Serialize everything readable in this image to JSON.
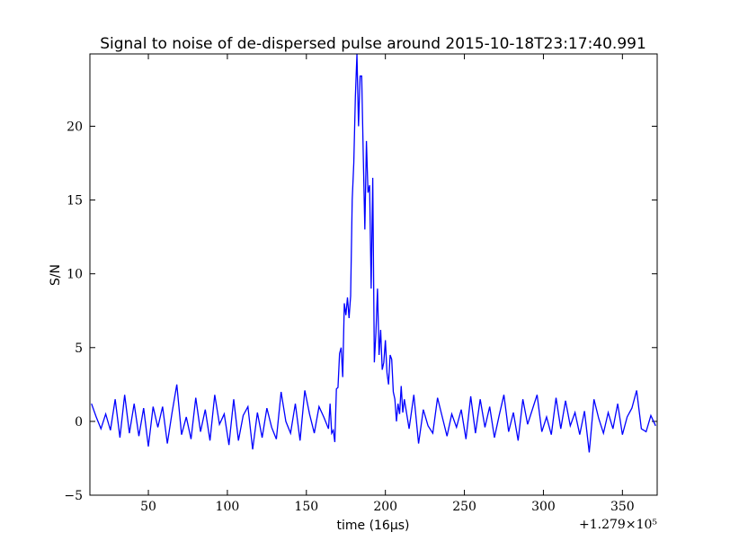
{
  "chart_data": {
    "type": "line",
    "title": "Signal to noise of de-dispersed pulse around 2015-10-18T23:17:40.991",
    "x_label": "time (16μs)",
    "y_label": "S/N",
    "x_offset_label": "+1.279×10⁵",
    "xlim": [
      13,
      372
    ],
    "ylim": [
      -5,
      24.9
    ],
    "xticks": [
      50,
      100,
      150,
      200,
      250,
      300,
      350
    ],
    "yticks": [
      {
        "value": -5,
        "label": "−5"
      },
      0,
      5,
      10,
      15,
      20
    ],
    "series": [
      {
        "name": "S/N",
        "color": "#0000ff",
        "x": [
          14,
          17,
          20,
          23,
          26,
          29,
          32,
          35,
          38,
          41,
          44,
          47,
          50,
          53,
          56,
          59,
          62,
          65,
          68,
          71,
          74,
          77,
          80,
          83,
          86,
          89,
          92,
          95,
          98,
          101,
          104,
          107,
          110,
          113,
          116,
          119,
          122,
          125,
          128,
          131,
          134,
          137,
          140,
          143,
          146,
          149,
          152,
          155,
          158,
          161,
          164,
          165,
          166,
          167,
          168,
          169,
          170,
          171,
          172,
          173,
          174,
          175,
          176,
          177,
          178,
          179,
          180,
          181,
          182,
          183,
          184,
          185,
          186,
          187,
          188,
          189,
          190,
          191,
          192,
          193,
          194,
          195,
          196,
          197,
          198,
          199,
          200,
          201,
          202,
          203,
          204,
          205,
          206,
          207,
          208,
          209,
          210,
          211,
          212,
          215,
          218,
          221,
          224,
          227,
          230,
          233,
          236,
          239,
          242,
          245,
          248,
          251,
          254,
          257,
          260,
          263,
          266,
          269,
          272,
          275,
          278,
          281,
          284,
          287,
          290,
          293,
          296,
          299,
          302,
          305,
          308,
          311,
          314,
          317,
          320,
          323,
          326,
          329,
          332,
          335,
          338,
          341,
          344,
          347,
          350,
          353,
          356,
          359,
          362,
          365,
          368,
          371
        ],
        "values": [
          1.2,
          0.3,
          -0.5,
          0.5,
          -0.6,
          1.5,
          -1.1,
          1.8,
          -0.8,
          1.2,
          -1.0,
          0.9,
          -1.7,
          1.0,
          -0.4,
          1.0,
          -1.5,
          0.6,
          2.5,
          -0.9,
          0.3,
          -1.2,
          1.6,
          -0.7,
          0.8,
          -1.3,
          1.8,
          -0.2,
          0.5,
          -1.6,
          1.5,
          -1.3,
          0.4,
          1.0,
          -1.9,
          0.6,
          -1.1,
          0.9,
          -0.4,
          -1.2,
          2.0,
          0.0,
          -0.8,
          1.2,
          -1.3,
          2.1,
          0.5,
          -0.8,
          1.0,
          0.3,
          -0.5,
          1.2,
          -0.8,
          -0.6,
          -1.4,
          2.2,
          2.3,
          4.6,
          5.0,
          3.0,
          8.0,
          7.2,
          8.4,
          7.0,
          8.5,
          15.0,
          17.5,
          22.0,
          24.9,
          20.0,
          23.4,
          23.4,
          18.0,
          13.0,
          19.0,
          15.5,
          16.0,
          9.0,
          16.5,
          4.0,
          6.0,
          9.0,
          4.5,
          6.2,
          3.5,
          4.0,
          5.5,
          3.3,
          2.5,
          4.5,
          4.2,
          2.0,
          1.5,
          0.0,
          1.2,
          0.5,
          2.4,
          0.6,
          1.5,
          -0.5,
          1.8,
          -1.5,
          0.8,
          -0.3,
          -0.8,
          1.6,
          0.3,
          -1.0,
          0.5,
          -0.4,
          0.8,
          -1.2,
          1.7,
          -0.8,
          1.5,
          -0.4,
          1.0,
          -1.1,
          0.4,
          1.8,
          -0.7,
          0.6,
          -1.3,
          1.5,
          -0.2,
          0.8,
          1.8,
          -0.7,
          0.3,
          -0.9,
          1.6,
          -0.5,
          1.4,
          -0.3,
          0.6,
          -0.9,
          0.7,
          -2.1,
          1.5,
          0.2,
          -0.8,
          0.6,
          -0.5,
          1.2,
          -0.9,
          0.3,
          0.9,
          2.1,
          -0.5,
          -0.7,
          0.4,
          -0.3
        ]
      }
    ]
  }
}
